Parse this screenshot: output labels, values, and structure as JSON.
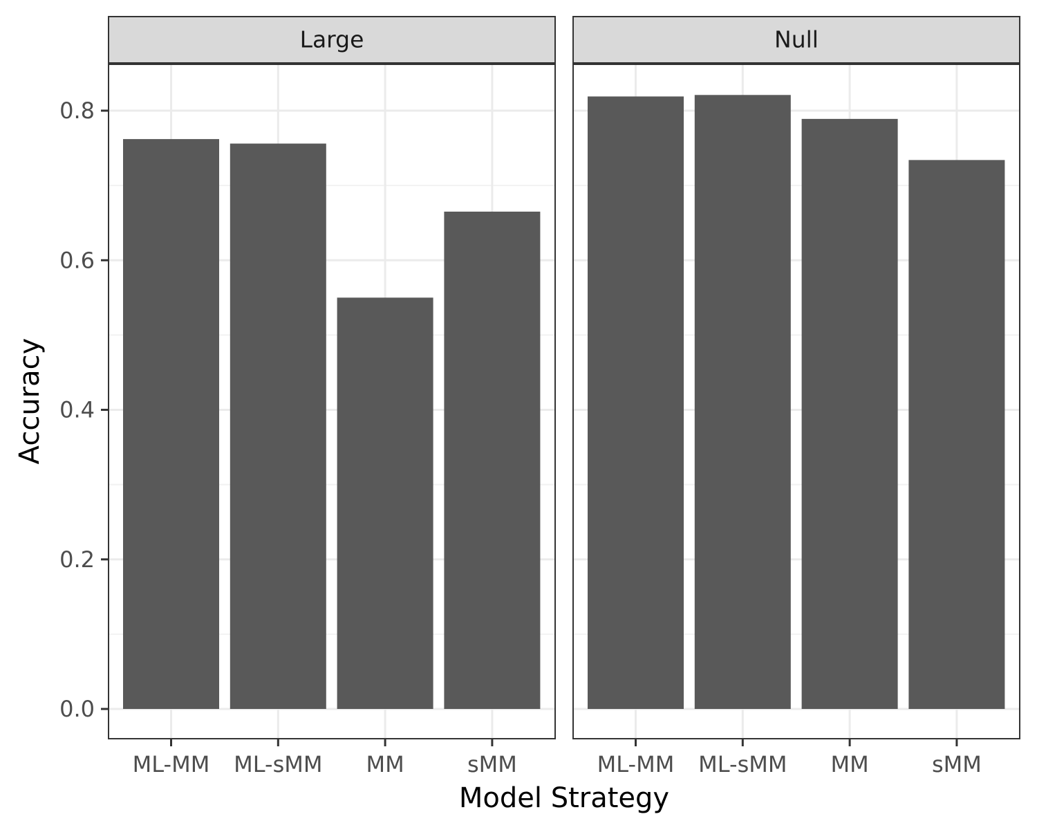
{
  "chart_data": {
    "type": "bar",
    "xlabel": "Model Strategy",
    "ylabel": "Accuracy",
    "ylim": [
      0,
      0.86
    ],
    "yticks": [
      0.0,
      0.2,
      0.4,
      0.6,
      0.8
    ],
    "ytick_labels": [
      "0.0",
      "0.2",
      "0.4",
      "0.6",
      "0.8"
    ],
    "categories": [
      "ML-MM",
      "ML-sMM",
      "MM",
      "sMM"
    ],
    "grid": true,
    "legend": "none",
    "panels": [
      {
        "label": "Large",
        "values": [
          0.762,
          0.756,
          0.55,
          0.665
        ]
      },
      {
        "label": "Null",
        "values": [
          0.819,
          0.821,
          0.789,
          0.734
        ]
      }
    ],
    "colors": {
      "bar": "#595959",
      "strip_fill": "#d9d9d9",
      "panel_border": "#333333",
      "grid_major": "#ebebeb",
      "grid_minor": "#f2f2f2",
      "tick_text": "#4d4d4d"
    }
  }
}
